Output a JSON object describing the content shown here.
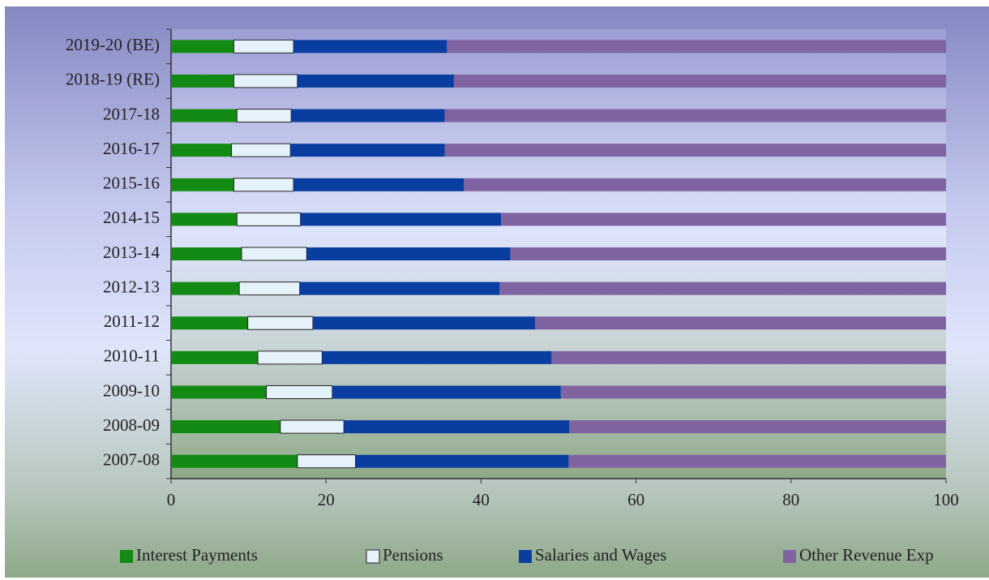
{
  "chart_data": {
    "type": "bar",
    "orientation": "horizontal",
    "stacked": true,
    "categories": [
      "2019-20 (BE)",
      "2018-19 (RE)",
      "2017-18",
      "2016-17",
      "2015-16",
      "2014-15",
      "2013-14",
      "2012-13",
      "2011-12",
      "2010-11",
      "2009-10",
      "2008-09",
      "2007-08"
    ],
    "series": [
      {
        "name": "Interest Payments",
        "color": "#138a13",
        "values": [
          8.1,
          8.1,
          8.5,
          7.8,
          8.1,
          8.5,
          9.1,
          8.8,
          9.9,
          11.2,
          12.3,
          14.1,
          16.3
        ]
      },
      {
        "name": "Pensions",
        "color": "#e6f2fa",
        "values": [
          7.7,
          8.2,
          7.0,
          7.6,
          7.7,
          8.2,
          8.4,
          7.8,
          8.4,
          8.3,
          8.5,
          8.2,
          7.5
        ]
      },
      {
        "name": "Salaries and Wages",
        "color": "#0a3da0",
        "values": [
          19.8,
          20.2,
          19.8,
          19.9,
          22.0,
          25.9,
          26.3,
          25.8,
          28.7,
          29.6,
          29.5,
          29.1,
          27.5
        ]
      },
      {
        "name": "Other Revenue Exp",
        "color": "#8064a2",
        "values": [
          64.4,
          63.5,
          64.7,
          64.7,
          62.2,
          57.4,
          56.2,
          57.6,
          53.0,
          50.9,
          49.7,
          48.6,
          48.7
        ]
      }
    ],
    "xlim": [
      0,
      100
    ],
    "xticks": [
      0,
      20,
      40,
      60,
      80,
      100
    ]
  }
}
